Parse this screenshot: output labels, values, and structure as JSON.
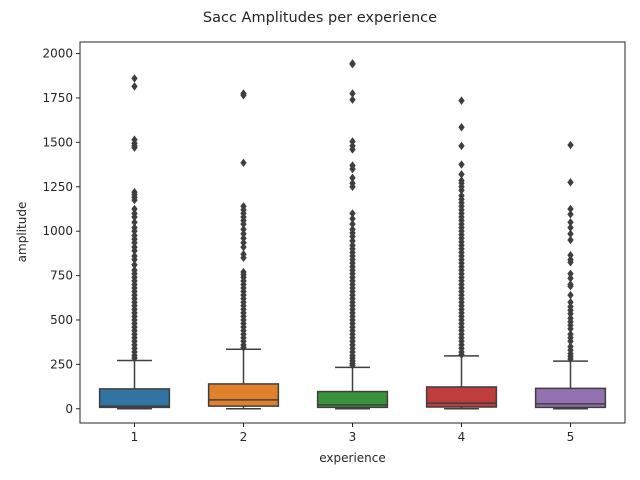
{
  "chart_data": {
    "type": "box",
    "title": "Sacc Amplitudes per experience",
    "xlabel": "experience",
    "ylabel": "amplitude",
    "categories": [
      "1",
      "2",
      "3",
      "4",
      "5"
    ],
    "ylim": [
      -80,
      2065
    ],
    "yticks": [
      0,
      250,
      500,
      750,
      1000,
      1250,
      1500,
      1750,
      2000
    ],
    "grid": false,
    "boxes": [
      {
        "category": "1",
        "color": "#3274a1",
        "whisker_low": 0,
        "q1": 8,
        "median": 15,
        "q3": 112,
        "whisker_high": 272,
        "outliers": [
          1860,
          1815,
          1515,
          1495,
          1480,
          1470,
          1220,
          1205,
          1190,
          1175,
          1125,
          1100,
          1080,
          1050,
          1020,
          1000,
          975,
          955,
          935,
          910,
          890,
          860,
          840,
          810,
          780,
          760,
          740,
          720,
          700,
          680,
          660,
          640,
          620,
          600,
          580,
          560,
          540,
          520,
          500,
          480,
          460,
          440,
          420,
          400,
          380,
          360,
          340,
          320,
          300,
          285
        ]
      },
      {
        "category": "2",
        "color": "#e1812c",
        "whisker_low": 0,
        "q1": 15,
        "median": 50,
        "q3": 140,
        "whisker_high": 335,
        "outliers": [
          1775,
          1765,
          1385,
          1140,
          1120,
          1100,
          1080,
          1060,
          1040,
          1010,
          985,
          960,
          935,
          910,
          870,
          850,
          770,
          755,
          740,
          720,
          700,
          680,
          660,
          640,
          620,
          600,
          580,
          560,
          540,
          520,
          500,
          480,
          460,
          440,
          420,
          400,
          380,
          360,
          345
        ]
      },
      {
        "category": "3",
        "color": "#3a923a",
        "whisker_low": 0,
        "q1": 8,
        "median": 22,
        "q3": 97,
        "whisker_high": 233,
        "outliers": [
          1945,
          1940,
          1775,
          1740,
          1505,
          1480,
          1460,
          1370,
          1350,
          1300,
          1270,
          1250,
          1100,
          1070,
          1040,
          1010,
          990,
          970,
          945,
          920,
          900,
          880,
          860,
          840,
          820,
          800,
          780,
          760,
          740,
          720,
          700,
          680,
          660,
          640,
          620,
          600,
          580,
          560,
          540,
          520,
          500,
          480,
          460,
          440,
          420,
          400,
          380,
          360,
          340,
          320,
          300,
          285,
          270,
          255,
          245
        ]
      },
      {
        "category": "4",
        "color": "#c03d3e",
        "whisker_low": 0,
        "q1": 10,
        "median": 32,
        "q3": 123,
        "whisker_high": 298,
        "outliers": [
          1735,
          1585,
          1480,
          1375,
          1320,
          1285,
          1270,
          1250,
          1230,
          1200,
          1180,
          1160,
          1140,
          1120,
          1100,
          1080,
          1060,
          1040,
          1020,
          1000,
          980,
          960,
          940,
          920,
          900,
          880,
          860,
          840,
          820,
          800,
          780,
          760,
          740,
          720,
          700,
          680,
          660,
          640,
          620,
          600,
          580,
          560,
          540,
          520,
          500,
          480,
          460,
          440,
          420,
          400,
          380,
          360,
          340,
          320,
          305
        ]
      },
      {
        "category": "5",
        "color": "#9372b2",
        "whisker_low": 0,
        "q1": 8,
        "median": 28,
        "q3": 115,
        "whisker_high": 268,
        "outliers": [
          1485,
          1275,
          1125,
          1095,
          1050,
          1020,
          985,
          950,
          865,
          840,
          825,
          760,
          735,
          700,
          690,
          640,
          600,
          575,
          555,
          535,
          510,
          490,
          470,
          450,
          420,
          400,
          380,
          350,
          330,
          310,
          295,
          280
        ]
      }
    ]
  }
}
